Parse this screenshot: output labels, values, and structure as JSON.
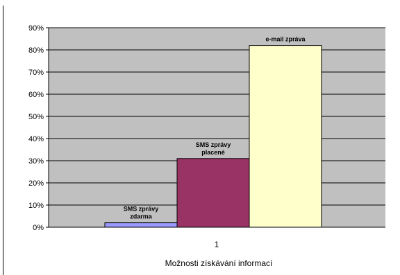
{
  "chart_data": {
    "type": "bar",
    "title": "",
    "ylabel": "",
    "xlabel": "Možnosti získávání informací",
    "categories": [
      "1"
    ],
    "ylim": [
      0,
      90
    ],
    "y_tick_step": 10,
    "y_tick_format": "{v}%",
    "grid": true,
    "legend": "none",
    "plot_background": "#c0c0c0",
    "series": [
      {
        "name": "",
        "label_lines": [
          "SMS zprávy",
          "zdarma"
        ],
        "value": 2,
        "color": "#9999ff"
      },
      {
        "name": "",
        "label_lines": [
          "SMS zprávy",
          "placené"
        ],
        "value": 31,
        "color": "#993366"
      },
      {
        "name": "",
        "label_lines": [
          "e-mail zpráva"
        ],
        "value": 82,
        "color": "#ffffcc"
      }
    ]
  }
}
